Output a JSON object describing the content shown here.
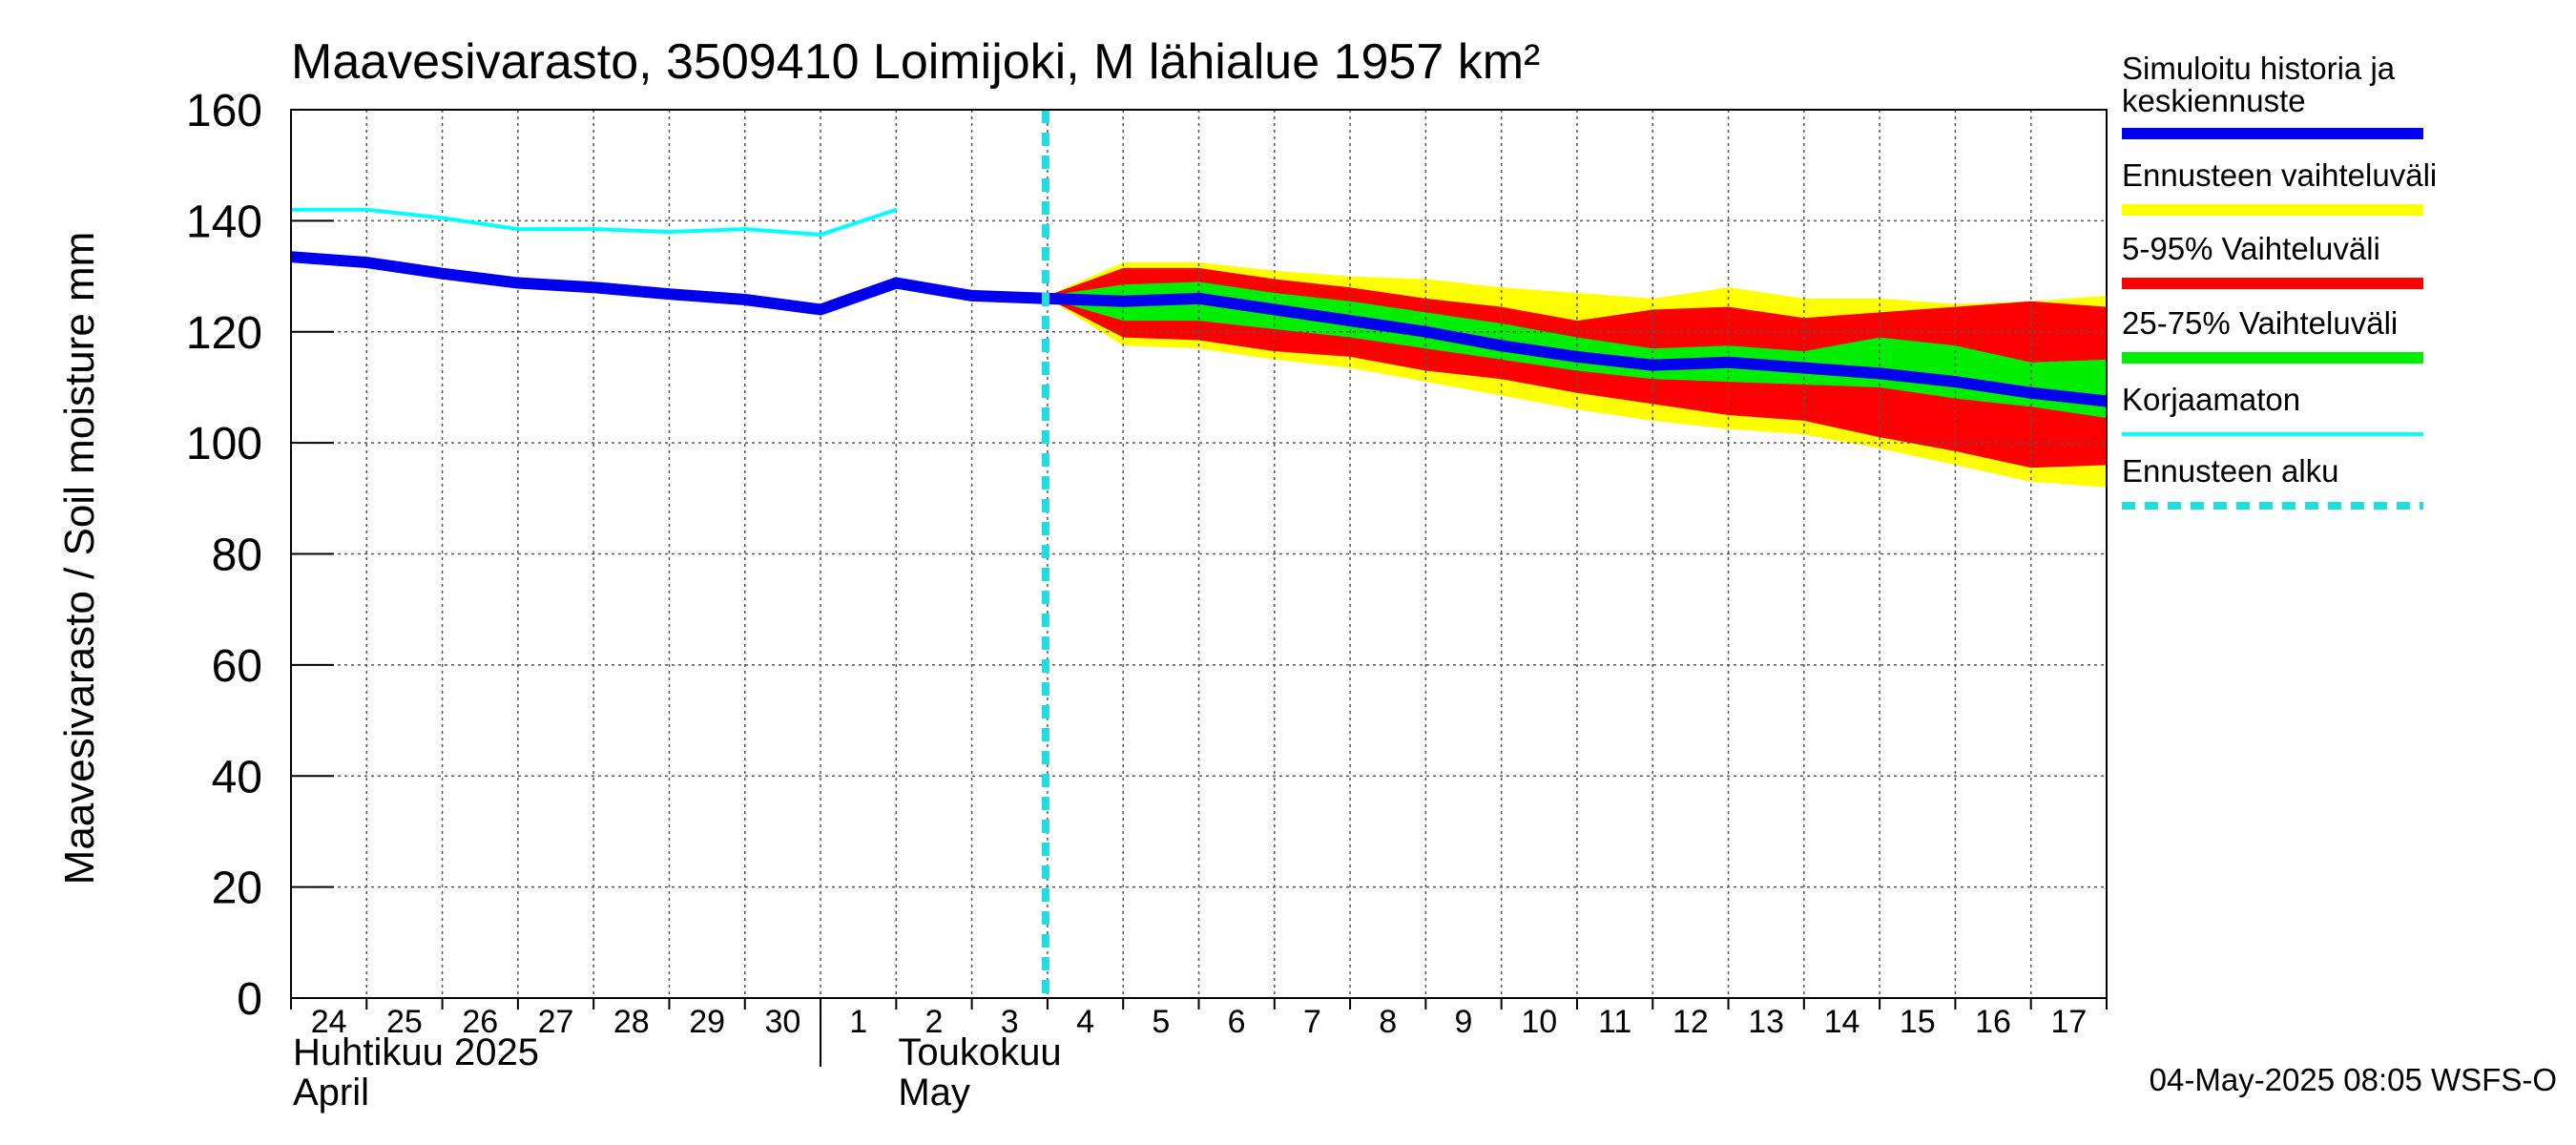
{
  "chart_data": {
    "type": "area",
    "title": "Maavesivarasto, 3509410 Loimijoki, M lähialue 1957 km²",
    "ylabel": "Maavesivarasto / Soil moisture   mm",
    "xlabel": "",
    "ylim": [
      0,
      160
    ],
    "yticks": [
      0,
      20,
      40,
      60,
      80,
      100,
      120,
      140,
      160
    ],
    "grid": true,
    "xlim": [
      0,
      24
    ],
    "x_tick_labels": [
      "24",
      "25",
      "26",
      "27",
      "28",
      "29",
      "30",
      "1",
      "2",
      "3",
      "4",
      "5",
      "6",
      "7",
      "8",
      "9",
      "10",
      "11",
      "12",
      "13",
      "14",
      "15",
      "16",
      "17"
    ],
    "month_labels": [
      {
        "line1": "Huhtikuu  2025",
        "line2": "April"
      },
      {
        "line1": "Toukokuu",
        "line2": "May"
      }
    ],
    "forecast_start_day": 10,
    "colors": {
      "simulated": "#0000ee",
      "uncorrected": "#00ffff",
      "forecast_start": "#22dddd",
      "range_full": "#ffff00",
      "range_5_95": "#ff0000",
      "range_25_75": "#00ee00",
      "grid": "#555555"
    },
    "series": [
      {
        "name": "Korjaamaton",
        "x": [
          0,
          1,
          2,
          3,
          4,
          5,
          6,
          7,
          8
        ],
        "values": [
          142,
          142,
          140.5,
          138.5,
          138.5,
          138,
          138.5,
          137.5,
          142
        ]
      },
      {
        "name": "Simuloitu historia ja keskiennuste",
        "x": [
          0,
          1,
          2,
          3,
          4,
          5,
          6,
          7,
          8,
          9,
          10,
          11,
          12,
          13,
          14,
          15,
          16,
          17,
          18,
          19,
          20,
          21,
          22,
          23,
          24
        ],
        "values": [
          133.5,
          132.5,
          130.5,
          128.8,
          128,
          126.8,
          125.8,
          124,
          128.8,
          126.5,
          126,
          125.5,
          126,
          124,
          122,
          120,
          117.5,
          115.5,
          114,
          114.5,
          113.5,
          112.5,
          111,
          109,
          107.5
        ]
      }
    ],
    "bands": [
      {
        "name": "Ennusteen vaihteluväli",
        "x": [
          10,
          11,
          12,
          13,
          14,
          15,
          16,
          17,
          18,
          19,
          20,
          21,
          22,
          23,
          24
        ],
        "upper": [
          126.5,
          132.5,
          132.5,
          131,
          130,
          129.5,
          128,
          127,
          126,
          128,
          126,
          126,
          125,
          125.5,
          126.5
        ],
        "lower": [
          126,
          117.5,
          117,
          115,
          113.5,
          111,
          108.5,
          106,
          104,
          102.5,
          101.5,
          99,
          96,
          93,
          92
        ]
      },
      {
        "name": "5-95% Vaihteluväli",
        "x": [
          10,
          11,
          12,
          13,
          14,
          15,
          16,
          17,
          18,
          19,
          20,
          21,
          22,
          23,
          24
        ],
        "upper": [
          126.5,
          131.5,
          131.5,
          129.5,
          128,
          126,
          124.5,
          122,
          124,
          124.5,
          122.5,
          123.5,
          124.5,
          125.5,
          124.5
        ],
        "lower": [
          126,
          119,
          118.5,
          116.5,
          115.5,
          113,
          111.5,
          109,
          107,
          105,
          104,
          101,
          98.5,
          95.5,
          96
        ]
      },
      {
        "name": "25-75% Vaihteluväli",
        "x": [
          10,
          11,
          12,
          13,
          14,
          15,
          16,
          17,
          18,
          19,
          20,
          21,
          22,
          23,
          24
        ],
        "upper": [
          126.5,
          128.5,
          129,
          127,
          125.5,
          123.5,
          121.5,
          119,
          117,
          117.5,
          116.5,
          119,
          117.5,
          114.5,
          115
        ]
      },
      {
        "name": "25-75% lower",
        "x": [
          10,
          11,
          12,
          13,
          14,
          15,
          16,
          17,
          18,
          19,
          20,
          21,
          22,
          23,
          24
        ],
        "lower": [
          126,
          122,
          122,
          120.5,
          119,
          117,
          115,
          113,
          111.5,
          111,
          110.5,
          110,
          108,
          106.5,
          104.5
        ]
      }
    ],
    "legend": [
      {
        "label": "Simuloitu historia ja keskiennuste",
        "color": "#0000ee",
        "style": "solid"
      },
      {
        "label": "Ennusteen vaihteluväli",
        "color": "#ffff00",
        "style": "solid"
      },
      {
        "label": "5-95% Vaihteluväli",
        "color": "#ff0000",
        "style": "solid"
      },
      {
        "label": "25-75% Vaihteluväli",
        "color": "#00ee00",
        "style": "solid"
      },
      {
        "label": "Korjaamaton",
        "color": "#00ffff",
        "style": "thin"
      },
      {
        "label": "Ennusteen alku",
        "color": "#22dddd",
        "style": "dashed"
      }
    ],
    "footer": "04-May-2025 08:05 WSFS-O"
  }
}
